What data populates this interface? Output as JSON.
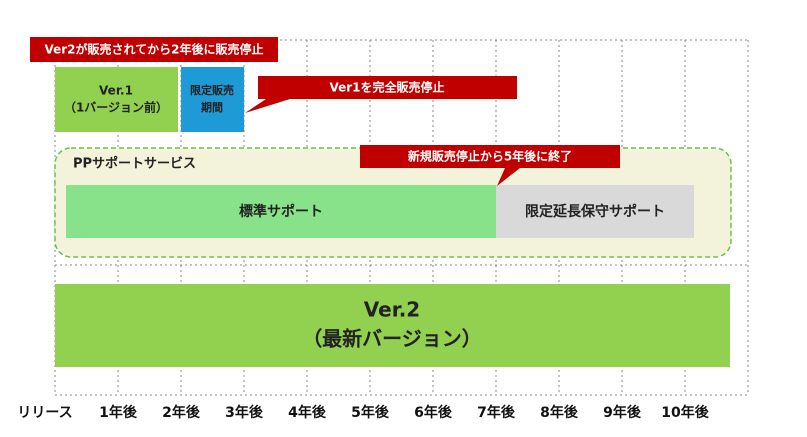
{
  "callouts": {
    "ver2_release": "Ver2が販売されてから2年後に販売停止",
    "ver1_stop": "Ver1を完全販売停止",
    "support_end": "新規販売停止から5年後に終了"
  },
  "ver1": {
    "title": "Ver.1",
    "subtitle": "（1バージョン前）"
  },
  "limited_sale": {
    "line1": "限定販売",
    "line2": "期間"
  },
  "pp_service": {
    "title": "PPサポートサービス",
    "standard": "標準サポート",
    "extended": "限定延長保守サポート"
  },
  "ver2": {
    "title": "Ver.2",
    "subtitle": "（最新バージョン）"
  },
  "timeline": [
    "リリース",
    "1年後",
    "2年後",
    "3年後",
    "4年後",
    "5年後",
    "6年後",
    "7年後",
    "8年後",
    "9年後",
    "10年後"
  ]
}
